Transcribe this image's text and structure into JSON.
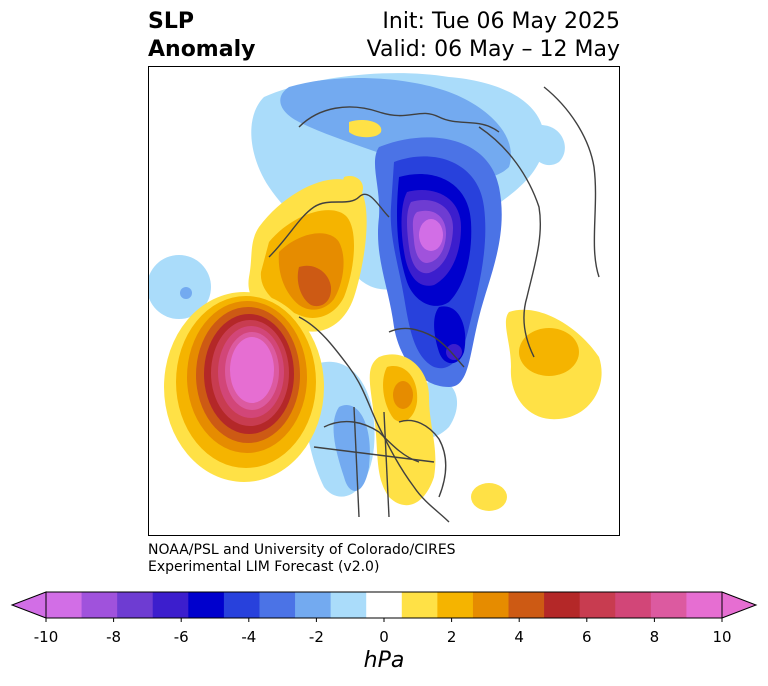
{
  "title": {
    "left_line1": "SLP",
    "left_line2": "Anomaly",
    "right_line1": "Init: Tue 06 May 2025",
    "right_line2": "Valid: 06 May – 12 May"
  },
  "credit": {
    "line1": "NOAA/PSL and University of Colorado/CIRES",
    "line2": "Experimental LIM Forecast (v2.0)"
  },
  "colorbar": {
    "units": "hPa",
    "ticks": [
      "-10",
      "-8",
      "-6",
      "-4",
      "-2",
      "0",
      "2",
      "4",
      "6",
      "8",
      "10"
    ],
    "levels": [
      -10,
      -9,
      -8,
      -7,
      -6,
      -5,
      -4,
      -3,
      -2,
      -1,
      1,
      2,
      3,
      4,
      5,
      6,
      7,
      8,
      9,
      10
    ],
    "colors": [
      "#d26ee6",
      "#a052dc",
      "#6e3cd2",
      "#3c1ecd",
      "#0000cd",
      "#2841dc",
      "#4b73e6",
      "#73aaf0",
      "#aadcfa",
      "#ffffff",
      "#ffe146",
      "#f5b400",
      "#e68c00",
      "#cd5a14",
      "#b42828",
      "#c83c50",
      "#d24678",
      "#dc5aa0",
      "#e66ed2"
    ],
    "extend": "both"
  },
  "map": {
    "projection": "north polar stereographic",
    "features": [
      "coastlines",
      "country borders",
      "US state borders"
    ],
    "anomalies": [
      {
        "name": "negative anomaly over Arctic / Eurasia",
        "min_hPa": -10
      },
      {
        "name": "positive anomaly over NE Pacific",
        "max_hPa": 10
      },
      {
        "name": "positive anomaly over Alaska / Beaufort",
        "max_hPa": 5
      },
      {
        "name": "positive anomaly over Great Lakes",
        "max_hPa": 4
      },
      {
        "name": "positive anomaly over central Atlantic",
        "max_hPa": 3
      },
      {
        "name": "negative anomaly over central US",
        "min_hPa": -4
      }
    ]
  }
}
